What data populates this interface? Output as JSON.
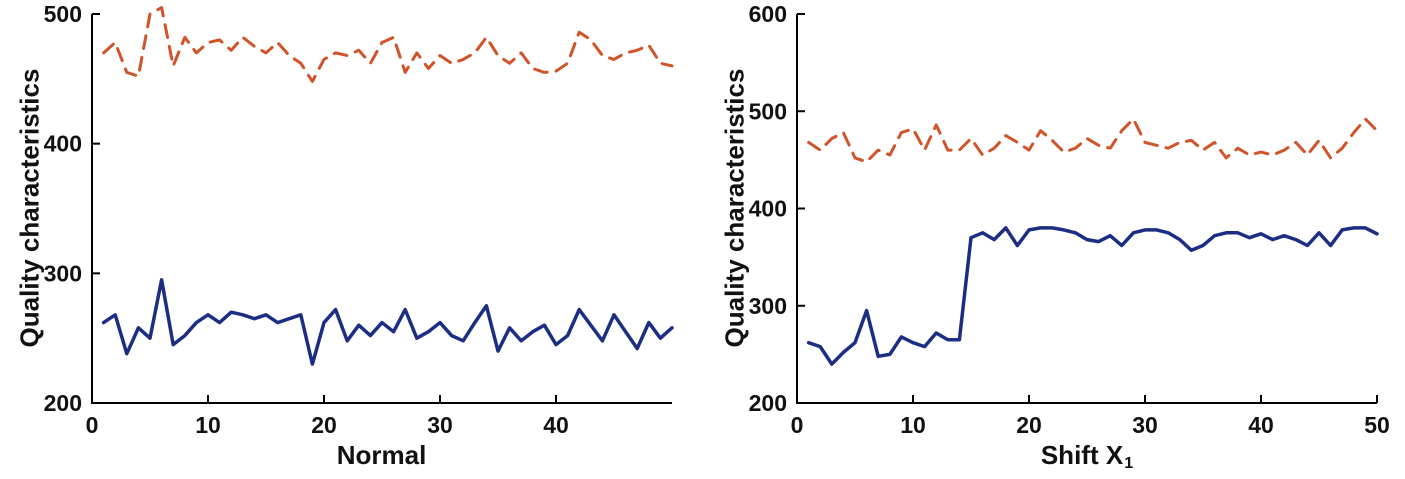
{
  "figure": {
    "background": "#ffffff"
  },
  "axis_style": {
    "axis_color": "#000000",
    "tick_font_size": 23,
    "label_font_size": 26,
    "tick_length": 8
  },
  "chart_data": [
    {
      "type": "line",
      "title": "",
      "xlabel": "Normal",
      "xlabel_sub": "",
      "ylabel": "Quality characteristics",
      "xlim": [
        0,
        50
      ],
      "ylim": [
        200,
        500
      ],
      "xticks": [
        0,
        10,
        20,
        30,
        40
      ],
      "yticks": [
        200,
        300,
        400,
        500
      ],
      "grid": false,
      "legend": null,
      "x": [
        1,
        2,
        3,
        4,
        5,
        6,
        7,
        8,
        9,
        10,
        11,
        12,
        13,
        14,
        15,
        16,
        17,
        18,
        19,
        20,
        21,
        22,
        23,
        24,
        25,
        26,
        27,
        28,
        29,
        30,
        31,
        32,
        33,
        34,
        35,
        36,
        37,
        38,
        39,
        40,
        41,
        42,
        43,
        44,
        45,
        46,
        47,
        48,
        49,
        50
      ],
      "series": [
        {
          "name": "upper-dashed",
          "color": "#d0532a",
          "style": "dashed",
          "width": 3,
          "values": [
            470,
            478,
            455,
            452,
            500,
            505,
            460,
            482,
            470,
            478,
            480,
            472,
            482,
            475,
            470,
            478,
            468,
            462,
            448,
            465,
            470,
            468,
            472,
            462,
            478,
            482,
            455,
            470,
            458,
            468,
            462,
            465,
            470,
            482,
            468,
            462,
            470,
            458,
            455,
            456,
            462,
            486,
            480,
            468,
            465,
            470,
            472,
            476,
            462,
            460
          ]
        },
        {
          "name": "lower-solid",
          "color": "#1c2e83",
          "style": "solid",
          "width": 3.5,
          "values": [
            262,
            268,
            238,
            258,
            250,
            295,
            245,
            252,
            262,
            268,
            262,
            270,
            268,
            265,
            268,
            262,
            265,
            268,
            230,
            262,
            272,
            248,
            260,
            252,
            262,
            255,
            272,
            250,
            255,
            262,
            252,
            248,
            262,
            275,
            240,
            258,
            248,
            255,
            260,
            245,
            252,
            272,
            260,
            248,
            268,
            255,
            242,
            262,
            250,
            258
          ]
        }
      ]
    },
    {
      "type": "line",
      "title": "",
      "xlabel": "Shift X",
      "xlabel_sub": "1",
      "ylabel": "Quality characteristics",
      "xlim": [
        0,
        50
      ],
      "ylim": [
        200,
        600
      ],
      "xticks": [
        0,
        10,
        20,
        30,
        40,
        50
      ],
      "yticks": [
        200,
        300,
        400,
        500,
        600
      ],
      "grid": false,
      "legend": null,
      "x": [
        1,
        2,
        3,
        4,
        5,
        6,
        7,
        8,
        9,
        10,
        11,
        12,
        13,
        14,
        15,
        16,
        17,
        18,
        19,
        20,
        21,
        22,
        23,
        24,
        25,
        26,
        27,
        28,
        29,
        30,
        31,
        32,
        33,
        34,
        35,
        36,
        37,
        38,
        39,
        40,
        41,
        42,
        43,
        44,
        45,
        46,
        47,
        48,
        49,
        50
      ],
      "series": [
        {
          "name": "upper-dashed",
          "color": "#d0532a",
          "style": "dashed",
          "width": 3,
          "values": [
            468,
            460,
            472,
            478,
            452,
            448,
            460,
            455,
            478,
            482,
            460,
            486,
            460,
            460,
            472,
            455,
            462,
            475,
            468,
            460,
            480,
            470,
            458,
            462,
            472,
            465,
            462,
            480,
            492,
            468,
            465,
            462,
            468,
            470,
            460,
            468,
            452,
            462,
            455,
            458,
            455,
            460,
            468,
            455,
            470,
            452,
            462,
            478,
            492,
            480
          ]
        },
        {
          "name": "lower-solid",
          "color": "#1c2e83",
          "style": "solid",
          "width": 3.5,
          "values": [
            262,
            258,
            240,
            252,
            262,
            295,
            248,
            250,
            268,
            262,
            258,
            272,
            265,
            265,
            370,
            375,
            368,
            380,
            362,
            378,
            380,
            380,
            378,
            375,
            368,
            366,
            372,
            362,
            375,
            378,
            378,
            375,
            368,
            357,
            362,
            372,
            375,
            375,
            370,
            374,
            368,
            372,
            368,
            362,
            375,
            362,
            378,
            380,
            380,
            374
          ]
        }
      ]
    }
  ]
}
